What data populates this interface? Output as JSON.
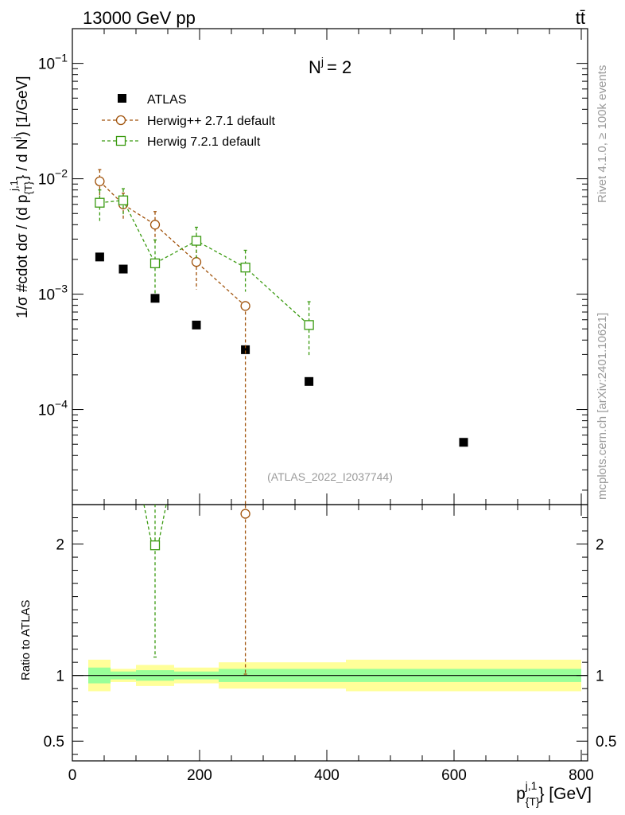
{
  "header": {
    "left": "13000 GeV pp",
    "right": "tt̄"
  },
  "side_text": {
    "rivet": "Rivet 4.1.0, ≥ 100k events",
    "mcplots": "mcplots.cern.ch [arXiv:2401.10621]"
  },
  "annotation": {
    "njet_label": "N",
    "njet_sup": "j",
    "njet_value": "= 2",
    "analysis": "(ATLAS_2022_I2037744)"
  },
  "colors": {
    "atlas": "#000000",
    "herwigpp": "#a0520a",
    "herwig7": "#3a9a10",
    "band_inner": "#99ff99",
    "band_outer": "#ffff99"
  },
  "chart_data": [
    {
      "type": "scatter",
      "name": "main",
      "ylabel_parts": [
        "1/σ #cdot dσ / (d p",
        "{T}",
        "j,1",
        "} / d N",
        "j",
        ") [1/GeV]"
      ],
      "xlim": [
        0,
        810
      ],
      "ylim": [
        1.5e-05,
        0.2
      ],
      "yscale": "log",
      "yticks": [
        {
          "value": 0.1,
          "base": "10",
          "exp": "−1"
        },
        {
          "value": 0.01,
          "base": "10",
          "exp": "−2"
        },
        {
          "value": 0.001,
          "base": "10",
          "exp": "−3"
        },
        {
          "value": 0.0001,
          "base": "10",
          "exp": "−4"
        }
      ],
      "legend": [
        "ATLAS",
        "Herwig++ 2.7.1 default",
        "Herwig 7.2.1 default"
      ],
      "series": [
        {
          "name": "ATLAS",
          "marker": "filled-square",
          "x": [
            43,
            80,
            130,
            195,
            272,
            372,
            615
          ],
          "y": [
            0.0021,
            0.00165,
            0.00092,
            0.00054,
            0.00033,
            0.000175,
            5.2e-05
          ]
        },
        {
          "name": "Herwig++ 2.7.1 default",
          "marker": "open-circle",
          "x": [
            43,
            80,
            130,
            195,
            272
          ],
          "y": [
            0.0095,
            0.006,
            0.004,
            0.0019,
            0.00079
          ],
          "err_up": [
            0.0025,
            0.0015,
            0.0012,
            0.0008,
            0
          ],
          "err_down": [
            0.0025,
            0.0015,
            0.0012,
            0.0008,
            0.00079
          ]
        },
        {
          "name": "Herwig 7.2.1 default",
          "marker": "open-square",
          "x": [
            43,
            80,
            130,
            195,
            272,
            372
          ],
          "y": [
            0.0062,
            0.0065,
            0.00185,
            0.0029,
            0.0017,
            0.00054
          ],
          "err_up": [
            0.0018,
            0.0017,
            0.0011,
            0.0009,
            0.0007,
            0.00032
          ],
          "err_down": [
            0.002,
            0.0017,
            0.00085,
            0.0009,
            0.00065,
            0.00025
          ]
        }
      ]
    },
    {
      "type": "scatter",
      "name": "ratio",
      "ylabel": "Ratio to ATLAS",
      "xlabel_parts": [
        "p",
        "{T}",
        "j,1",
        "} [GeV]"
      ],
      "xlim": [
        0,
        810
      ],
      "ylim": [
        0.35,
        2.3
      ],
      "yticks": [
        {
          "value": 2,
          "label": "2"
        },
        {
          "value": 1,
          "label": "1"
        },
        {
          "value": 0.5,
          "label": "0.5"
        }
      ],
      "xticks": [
        {
          "value": 0,
          "label": "0"
        },
        {
          "value": 200,
          "label": "200"
        },
        {
          "value": 400,
          "label": "400"
        },
        {
          "value": 600,
          "label": "600"
        },
        {
          "value": 800,
          "label": "800"
        }
      ],
      "bands": [
        {
          "x0": 25,
          "x1": 60,
          "inner": 0.06,
          "outer": 0.12
        },
        {
          "x0": 60,
          "x1": 100,
          "inner": 0.03,
          "outer": 0.05
        },
        {
          "x0": 100,
          "x1": 160,
          "inner": 0.04,
          "outer": 0.08
        },
        {
          "x0": 160,
          "x1": 230,
          "inner": 0.03,
          "outer": 0.06
        },
        {
          "x0": 230,
          "x1": 430,
          "inner": 0.05,
          "outer": 0.1
        },
        {
          "x0": 430,
          "x1": 800,
          "inner": 0.05,
          "outer": 0.12
        }
      ],
      "series": [
        {
          "name": "Herwig 7.2.1 default",
          "marker": "open-square",
          "x": [
            130
          ],
          "y": [
            1.99
          ],
          "err_low": [
            1.14
          ],
          "offscale_arrow_x": 130
        },
        {
          "name": "Herwig++ 2.7.1 default",
          "marker": "open-circle",
          "x": [
            272
          ],
          "y": [
            2.23
          ],
          "err_low": [
            1.01
          ]
        }
      ]
    }
  ]
}
